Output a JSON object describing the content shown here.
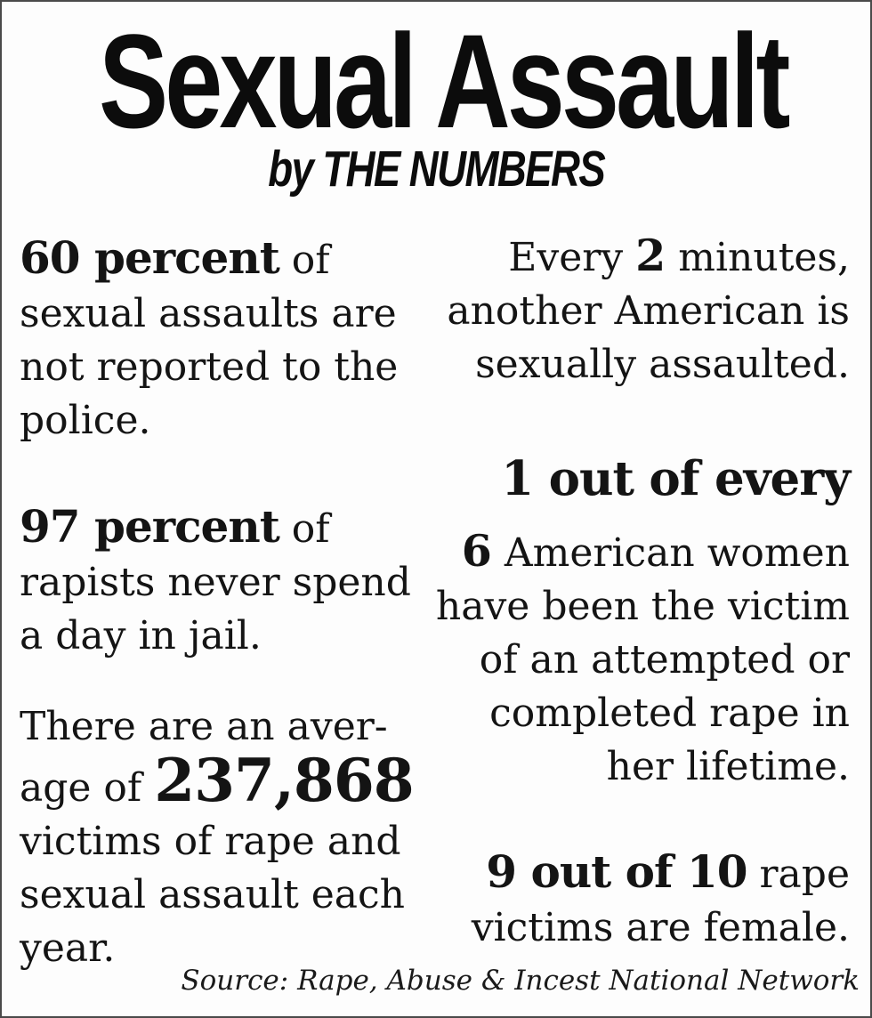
{
  "header": {
    "title": "Sexual Assault",
    "subtitle": "by THE NUMBERS"
  },
  "stats": {
    "unreported": {
      "l0_bold": "60 percent",
      "l0_rest": " of",
      "l1": "sexual assaults are",
      "l2": "not reported to the",
      "l3": "police."
    },
    "jail": {
      "l0_bold": "97 percent",
      "l0_rest": " of",
      "l1": "rapists never spend",
      "l2": "a day in jail."
    },
    "average": {
      "l0": "There are an aver-",
      "l1_rest": "age of ",
      "l1_number": "237,868",
      "l2": "victims of rape and",
      "l3": "sexual assault each",
      "l4": "year."
    },
    "frequency": {
      "l0_pre": "Every ",
      "l0_number": "2",
      "l0_post": " minutes,",
      "l1": "another American is",
      "l2": "sexually assaulted."
    },
    "one_in_six": {
      "heading": "1 out of every",
      "l0_number": "6",
      "l0_rest": " American women",
      "l1": "have been the victim",
      "l2": "of an attempted or",
      "l3": "completed rape in",
      "l4": "her lifetime."
    },
    "female": {
      "l0_bold": "9 out of 10",
      "l0_rest": " rape",
      "l1": "victims are female."
    }
  },
  "footer": {
    "source": "Source: Rape, Abuse & Incest National Network"
  },
  "colors": {
    "background": "#fdfdfd",
    "border": "#4a4a4a",
    "text": "#121212"
  }
}
